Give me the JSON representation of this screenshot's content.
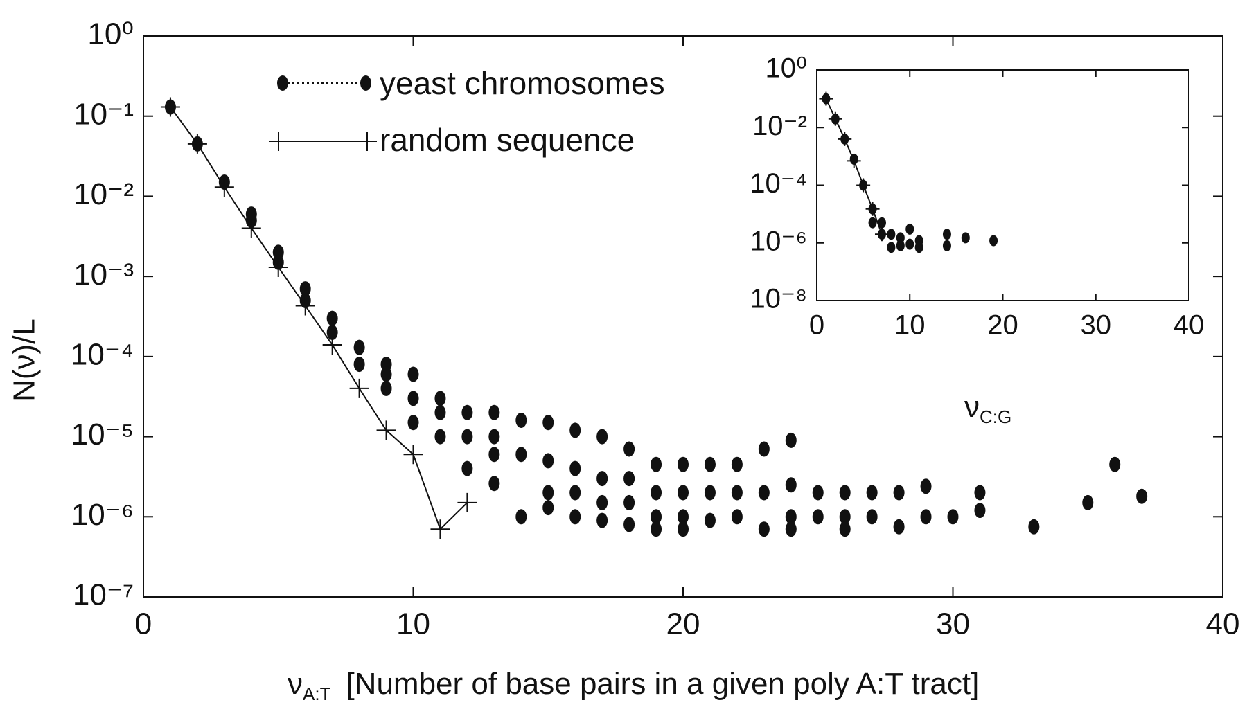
{
  "chart_data": [
    {
      "type": "line",
      "y_label": "N(ν)/L",
      "x_label": {
        "symbol": "ν",
        "subscript": "A:T",
        "text": "[Number of base pairs in a given poly A:T tract]"
      },
      "log_y": true,
      "xlim": [
        0,
        40
      ],
      "xticks": [
        0,
        10,
        20,
        30,
        40
      ],
      "ylim": [
        1e-07,
        1
      ],
      "yticks": [
        {
          "value": 1e-07,
          "label": "10⁻⁷"
        },
        {
          "value": 1e-06,
          "label": "10⁻⁶"
        },
        {
          "value": 1e-05,
          "label": "10⁻⁵"
        },
        {
          "value": 0.0001,
          "label": "10⁻⁴"
        },
        {
          "value": 0.001,
          "label": "10⁻³"
        },
        {
          "value": 0.01,
          "label": "10⁻²"
        },
        {
          "value": 0.1,
          "label": "10⁻¹"
        },
        {
          "value": 1,
          "label": "10⁰"
        }
      ],
      "legend": "upper left",
      "series": [
        {
          "name": "yeast chromosomes",
          "color": "#111111",
          "marker": "dot",
          "line": "none",
          "x": [
            1,
            2,
            3,
            4,
            4,
            5,
            5,
            6,
            6,
            7,
            7,
            8,
            8,
            9,
            9,
            9,
            10,
            10,
            10,
            11,
            11,
            11,
            12,
            12,
            12,
            13,
            13,
            13,
            13,
            14,
            14,
            14,
            15,
            15,
            15,
            15,
            16,
            16,
            16,
            16,
            17,
            17,
            17,
            17,
            18,
            18,
            18,
            18,
            19,
            19,
            19,
            19,
            20,
            20,
            20,
            20,
            21,
            21,
            21,
            22,
            22,
            22,
            23,
            23,
            23,
            24,
            24,
            24,
            24,
            25,
            25,
            26,
            26,
            26,
            27,
            27,
            28,
            28,
            29,
            29,
            30,
            31,
            31,
            33,
            35,
            36,
            37
          ],
          "values": [
            0.13,
            0.045,
            0.015,
            0.006,
            0.005,
            0.002,
            0.0015,
            0.0007,
            0.0005,
            0.0003,
            0.0002,
            0.00013,
            8e-05,
            8e-05,
            6e-05,
            4e-05,
            6e-05,
            3e-05,
            1.5e-05,
            3e-05,
            2e-05,
            1e-05,
            2e-05,
            1e-05,
            4e-06,
            2e-05,
            1e-05,
            6e-06,
            2.6e-06,
            1.6e-05,
            6e-06,
            1e-06,
            1.5e-05,
            5e-06,
            2e-06,
            1.3e-06,
            1.2e-05,
            4e-06,
            2e-06,
            1e-06,
            1e-05,
            3e-06,
            1.5e-06,
            9e-07,
            7e-06,
            3e-06,
            1.5e-06,
            8e-07,
            4.5e-06,
            2e-06,
            1e-06,
            7e-07,
            4.5e-06,
            2e-06,
            1e-06,
            7e-07,
            4.5e-06,
            2e-06,
            9e-07,
            4.5e-06,
            2e-06,
            1e-06,
            7e-06,
            2e-06,
            7e-07,
            9e-06,
            2.5e-06,
            1e-06,
            7e-07,
            2e-06,
            1e-06,
            2e-06,
            1e-06,
            7e-07,
            2e-06,
            1e-06,
            2e-06,
            7.5e-07,
            2.4e-06,
            1e-06,
            1e-06,
            2e-06,
            1.2e-06,
            7.5e-07,
            1.5e-06,
            4.5e-06,
            1.8e-06
          ]
        },
        {
          "name": "random sequence",
          "color": "#111111",
          "marker": "cross",
          "line": "solid",
          "x": [
            1,
            2,
            3,
            4,
            5,
            6,
            7,
            8,
            9,
            10,
            11,
            12
          ],
          "values": [
            0.13,
            0.045,
            0.013,
            0.004,
            0.0013,
            0.00043,
            0.00014,
            4e-05,
            1.2e-05,
            6e-06,
            7e-07,
            1.5e-06
          ]
        }
      ]
    },
    {
      "type": "line",
      "x_label": {
        "symbol": "ν",
        "subscript": "C:G"
      },
      "log_y": true,
      "xlim": [
        0,
        40
      ],
      "xticks": [
        0,
        10,
        20,
        30,
        40
      ],
      "ylim": [
        1e-08,
        1
      ],
      "yticks": [
        {
          "value": 1e-08,
          "label": "10⁻⁸"
        },
        {
          "value": 1e-06,
          "label": "10⁻⁶"
        },
        {
          "value": 0.0001,
          "label": "10⁻⁴"
        },
        {
          "value": 0.01,
          "label": "10⁻²"
        },
        {
          "value": 1,
          "label": "10⁰"
        }
      ],
      "series": [
        {
          "color": "#111111",
          "marker": "dot",
          "line": "none",
          "x": [
            1,
            2,
            3,
            4,
            5,
            6,
            6,
            7,
            7,
            8,
            8,
            9,
            9,
            10,
            10,
            11,
            11,
            14,
            14,
            16,
            19
          ],
          "values": [
            0.1,
            0.02,
            0.004,
            0.0008,
            0.0001,
            1.5e-05,
            5e-06,
            5e-06,
            2e-06,
            2e-06,
            7e-07,
            1.5e-06,
            8e-07,
            3e-06,
            9e-07,
            1.2e-06,
            7e-07,
            2e-06,
            8e-07,
            1.5e-06,
            1.2e-06
          ]
        },
        {
          "color": "#111111",
          "marker": "cross",
          "line": "solid",
          "x": [
            1,
            2,
            3,
            4,
            5,
            6,
            7
          ],
          "values": [
            0.1,
            0.02,
            0.004,
            0.0007,
            0.0001,
            1.5e-05,
            2e-06
          ]
        }
      ]
    }
  ]
}
